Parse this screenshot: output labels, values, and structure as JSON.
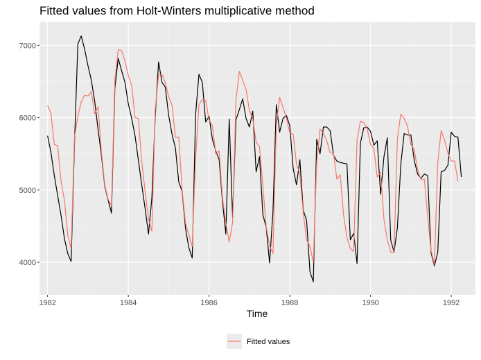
{
  "chart_data": {
    "type": "line",
    "title": "Fitted values from Holt-Winters multiplicative method",
    "xlabel": "Time",
    "ylabel": "",
    "xlim": [
      1981.8,
      1992.6
    ],
    "ylim": [
      3550,
      7320
    ],
    "x_ticks": [
      1982,
      1984,
      1986,
      1988,
      1990,
      1992
    ],
    "y_ticks": [
      4000,
      5000,
      6000,
      7000
    ],
    "grid": true,
    "legend_position": "bottom",
    "legend": [
      "Fitted values"
    ],
    "start": 1982,
    "frequency": 12,
    "series": [
      {
        "color": "#000000",
        "values": [
          5750,
          5520,
          5200,
          4920,
          4650,
          4330,
          4120,
          4010,
          5650,
          7020,
          7130,
          6950,
          6720,
          6520,
          6230,
          5840,
          5480,
          5050,
          4860,
          4680,
          6410,
          6820,
          6650,
          6490,
          6190,
          5990,
          5750,
          5410,
          5070,
          4740,
          4390,
          4890,
          6010,
          6770,
          6490,
          6420,
          6030,
          5770,
          5580,
          5110,
          4980,
          4470,
          4200,
          4060,
          6040,
          6600,
          6490,
          5940,
          6020,
          5700,
          5540,
          5420,
          4840,
          4390,
          5980,
          4620,
          5970,
          6110,
          6260,
          5990,
          5870,
          6090,
          5250,
          5460,
          4660,
          4480,
          3990,
          4700,
          6180,
          5800,
          5990,
          6030,
          5890,
          5300,
          5070,
          5420,
          4720,
          4580,
          3870,
          3730,
          5700,
          5500,
          5870,
          5870,
          5820,
          5480,
          5400,
          5380,
          5370,
          5360,
          4310,
          4400,
          3980,
          5650,
          5860,
          5870,
          5810,
          5620,
          5680,
          4940,
          5460,
          5720,
          4310,
          4140,
          4480,
          5350,
          5780,
          5760,
          5760,
          5410,
          5220,
          5160,
          5220,
          5200,
          4130,
          3950,
          4140,
          5250,
          5270,
          5340,
          5800,
          5740,
          5730,
          5180
        ]
      },
      {
        "name": "Fitted values",
        "color": "#F8766D",
        "values": [
          6170,
          6060,
          5630,
          5610,
          5120,
          4860,
          4380,
          4180,
          5730,
          6020,
          6220,
          6310,
          6300,
          6360,
          6050,
          6150,
          5530,
          5070,
          4870,
          4780,
          6520,
          6940,
          6930,
          6780,
          6580,
          6450,
          6000,
          5990,
          5390,
          4980,
          4600,
          4430,
          6110,
          6590,
          6600,
          6480,
          6290,
          6170,
          5730,
          5730,
          5000,
          4540,
          4380,
          4220,
          5430,
          6180,
          6250,
          6240,
          5970,
          5890,
          5500,
          5540,
          4890,
          4540,
          4280,
          4550,
          6250,
          6640,
          6520,
          6390,
          6100,
          5980,
          5660,
          5600,
          5060,
          4480,
          4230,
          4120,
          5900,
          6280,
          6140,
          5990,
          5790,
          5770,
          5360,
          5220,
          4690,
          4310,
          4220,
          4000,
          5370,
          5840,
          5780,
          5680,
          5510,
          5510,
          5150,
          5210,
          4650,
          4340,
          4190,
          4150,
          5690,
          5950,
          5930,
          5850,
          5630,
          5570,
          5180,
          5240,
          4590,
          4310,
          4140,
          4130,
          5710,
          6050,
          5990,
          5880,
          5630,
          5560,
          5280,
          5140,
          5150,
          4630,
          4160,
          3970,
          5380,
          5820,
          5690,
          5510,
          5400,
          5400,
          5120
        ]
      }
    ]
  }
}
